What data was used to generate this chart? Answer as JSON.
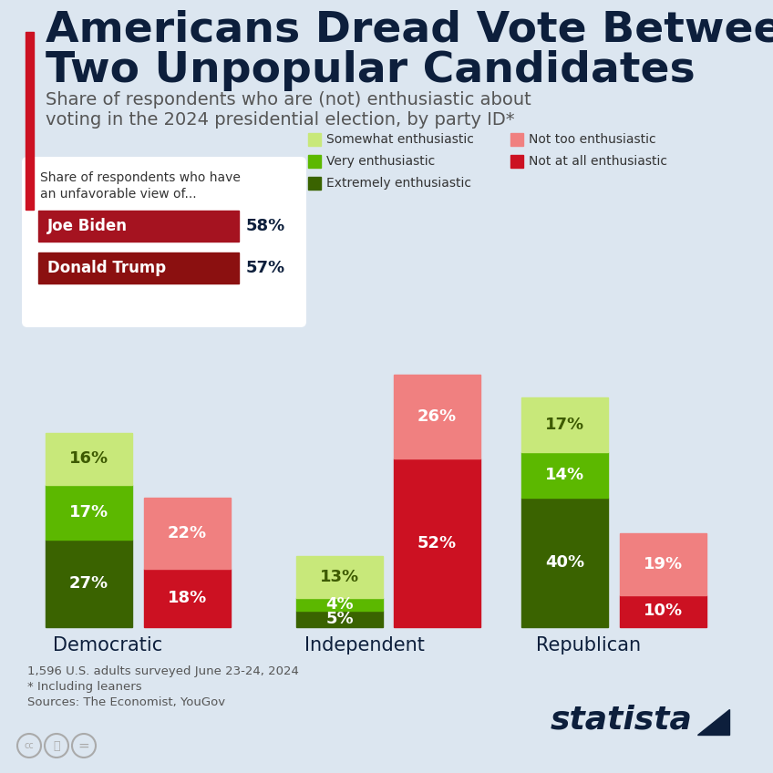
{
  "title_line1": "Americans Dread Vote Between",
  "title_line2": "Two Unpopular Candidates",
  "subtitle_line1": "Share of respondents who are (not) enthusiastic about",
  "subtitle_line2": "voting in the 2024 presidential election, by party ID*",
  "background_color": "#dce6f0",
  "title_color": "#0d1f3c",
  "subtitle_color": "#555555",
  "infobox_title_line1": "Share of respondents who have",
  "infobox_title_line2": "an unfavorable view of...",
  "infobox_items": [
    {
      "label": "Joe Biden",
      "value": "58%",
      "color": "#a51320"
    },
    {
      "label": "Donald Trump",
      "value": "57%",
      "color": "#8b1010"
    }
  ],
  "categories": [
    "Democratic",
    "Independent",
    "Republican"
  ],
  "enthusiastic_bars": [
    {
      "extremely": 27,
      "very": 17,
      "somewhat": 16
    },
    {
      "extremely": 5,
      "very": 4,
      "somewhat": 13
    },
    {
      "extremely": 40,
      "very": 14,
      "somewhat": 17
    }
  ],
  "not_enthusiastic_bars": [
    {
      "not_too": 22,
      "not_at_all": 18
    },
    {
      "not_too": 26,
      "not_at_all": 52
    },
    {
      "not_too": 19,
      "not_at_all": 10
    }
  ],
  "color_somewhat": "#c8e87a",
  "color_very": "#5cb800",
  "color_extremely": "#3a6300",
  "color_not_too": "#f08080",
  "color_not_at_all": "#cc1122",
  "legend_items": [
    {
      "label": "Somewhat enthusiastic",
      "color": "#c8e87a"
    },
    {
      "label": "Very enthusiastic",
      "color": "#5cb800"
    },
    {
      "label": "Extremely enthusiastic",
      "color": "#3a6300"
    },
    {
      "label": "Not too enthusiastic",
      "color": "#f08080"
    },
    {
      "label": "Not at all enthusiastic",
      "color": "#cc1122"
    }
  ],
  "footnote1": "1,596 U.S. adults surveyed June 23-24, 2024",
  "footnote2": "* Including leaners",
  "footnote3": "Sources: The Economist, YouGov",
  "statista_text": "statista"
}
